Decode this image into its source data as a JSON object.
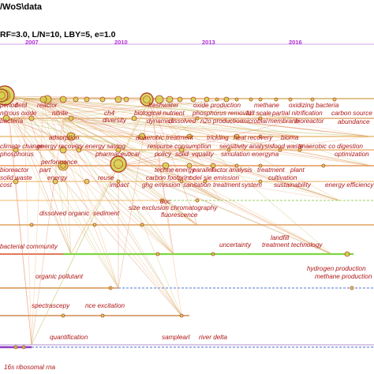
{
  "header": {
    "path": "/WoS\\data",
    "params": "RF=3.0, L/N=10, LBY=5, e=1.0"
  },
  "timeline": {
    "years": [
      "2007",
      "2010",
      "2013",
      "2016"
    ]
  },
  "colors": {
    "year_label": "#b12fd6",
    "keyword": "#b01717",
    "nodes": "#b8c03a",
    "lines_warm": "#e8a060",
    "lines_green": "#7ad83c",
    "lines_purple": "#8a3ec4",
    "lines_dashed_blue": "#4a7bd0"
  },
  "keywords": {
    "c1": [
      "period",
      "field",
      "reactor",
      "freshwater",
      "oxide production",
      "methane",
      "oxidizing bacteria",
      "carbon source"
    ],
    "c2": [
      "nitrous oxide",
      "oxide",
      "nitrite",
      "ch4",
      "diversity",
      "biological nutrient",
      "phosphorus removal",
      "full scale",
      "partial nitrification",
      "abundance"
    ],
    "c3": [
      "nitrous oxide emission",
      "bacteria",
      "dynamics",
      "energy",
      "dissolved",
      "n2o production",
      "microbial",
      "membrane",
      "bioreactor"
    ],
    "c4": [
      "adsorption",
      "anaerobic treatment",
      "trickling",
      "heat",
      "recovery",
      "bioma"
    ],
    "c5": [
      "climate change",
      "energy recovery",
      "energy saving",
      "resource consumption",
      "sensitivity analysis",
      "food waste",
      "anaerobic co digestion"
    ],
    "c6": [
      "removal",
      "phosphorus",
      "performance",
      "pharmaceutical",
      "energy",
      "policy",
      "solid",
      "vquality",
      "simulation",
      "wastewater",
      "energyna",
      "optimization"
    ],
    "c7": [
      "bioreactor",
      "part",
      "techne",
      "energy",
      "parallel",
      "factor",
      "analysis",
      "treatment",
      "plant"
    ],
    "c8": [
      "solid waste",
      "energy",
      "reuse",
      "carbon footprint",
      "odel",
      "sie emission",
      "cultivation"
    ],
    "c9": [
      "cost",
      "impact",
      "ghg emission",
      "sanitation",
      "treatment",
      "system",
      "sustainability",
      "energy efficiency"
    ],
    "c10": [
      "doc"
    ],
    "c11": [
      "dissolved organic",
      "sediment",
      "size exclusion chromatography",
      "fluorescence"
    ],
    "c12": [
      "landfill"
    ],
    "c13": [
      "bacterial community",
      "uncertainty",
      "treatment technology"
    ],
    "c14": [
      "hydrogen production"
    ],
    "c15": [
      "organic pollutant",
      "methane production"
    ],
    "c16": [
      "spectrascepy",
      "nce excitation"
    ],
    "c17": [
      "quantification",
      "samplearl",
      "river delta"
    ],
    "c18": [
      "16s ribosomal rna"
    ]
  }
}
